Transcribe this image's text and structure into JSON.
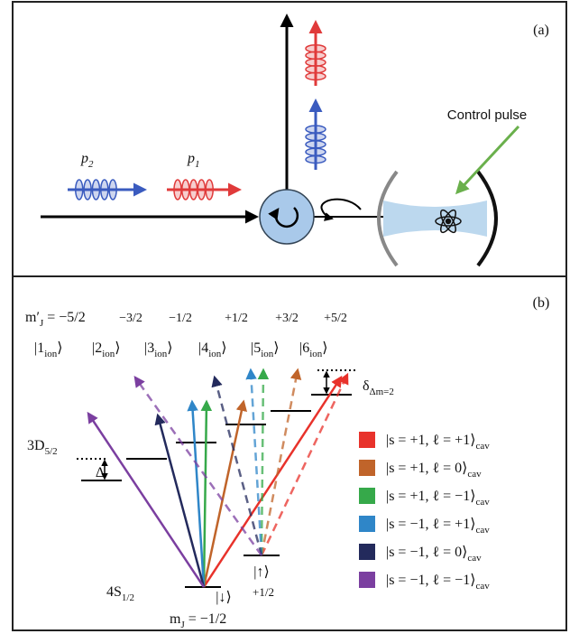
{
  "panel_a": {
    "label": "(a)",
    "p2": {
      "base": "p",
      "sub": "2"
    },
    "p1": {
      "base": "p",
      "sub": "1"
    },
    "control_pulse": "Control pulse"
  },
  "panel_b": {
    "label": "(b)",
    "mj_prime": {
      "base": "m′",
      "sub": "J",
      "tail": " = −5/2"
    },
    "mj_values": [
      "−3/2",
      "−1/2",
      "+1/2",
      "+3/2",
      "+5/2"
    ],
    "ion_states": [
      {
        "base": "|1",
        "sub": "ion",
        "tail": "⟩"
      },
      {
        "base": "|2",
        "sub": "ion",
        "tail": "⟩"
      },
      {
        "base": "|3",
        "sub": "ion",
        "tail": "⟩"
      },
      {
        "base": "|4",
        "sub": "ion",
        "tail": "⟩"
      },
      {
        "base": "|5",
        "sub": "ion",
        "tail": "⟩"
      },
      {
        "base": "|6",
        "sub": "ion",
        "tail": "⟩"
      }
    ],
    "level_3d": {
      "base": "3D",
      "sub": "5/2"
    },
    "delta": "Δ",
    "delta_split": {
      "base": "δ",
      "sub": "Δm=2"
    },
    "level_4s": {
      "base": "4S",
      "sub": "1/2"
    },
    "down": "|↓⟩",
    "up": "|↑⟩",
    "up_mj": "+1/2",
    "mj": {
      "base": "m",
      "sub": "J",
      "tail": " = −1/2"
    },
    "legend": [
      {
        "label": {
          "base": "|s = +1, ℓ = +1⟩",
          "sub": "cav"
        },
        "color": "#e8322b"
      },
      {
        "label": {
          "base": "|s = +1, ℓ = 0⟩",
          "sub": "cav"
        },
        "color": "#c0642a"
      },
      {
        "label": {
          "base": "|s = +1, ℓ = −1⟩",
          "sub": "cav"
        },
        "color": "#36a94a"
      },
      {
        "label": {
          "base": "|s = −1, ℓ = +1⟩",
          "sub": "cav"
        },
        "color": "#2f86c8"
      },
      {
        "label": {
          "base": "|s = −1, ℓ = 0⟩",
          "sub": "cav"
        },
        "color": "#232a5c"
      },
      {
        "label": {
          "base": "|s = −1, ℓ = −1⟩",
          "sub": "cav"
        },
        "color": "#7b3fa0"
      }
    ]
  }
}
